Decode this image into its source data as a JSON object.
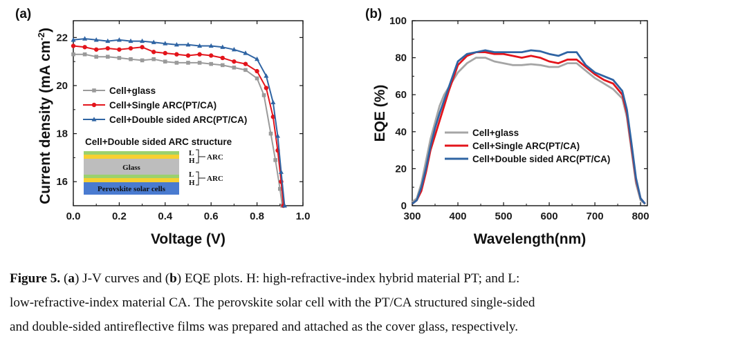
{
  "chart_data": [
    {
      "panel": "(a)",
      "type": "line",
      "title": "",
      "xlabel": "Voltage (V)",
      "ylabel": "Current density (mA cm",
      "ylabel_sup": "-2",
      "ylabel_close": ")",
      "xlim": [
        0.0,
        1.0
      ],
      "ylim": [
        15.0,
        22.7
      ],
      "xticks": [
        "0.0",
        "0.2",
        "0.4",
        "0.6",
        "0.8",
        "1.0"
      ],
      "yticks": [
        "16",
        "18",
        "20",
        "22"
      ],
      "legend_position": "center-left",
      "series": [
        {
          "name": "Cell+glass",
          "color": "#9a9a9a",
          "marker": "square",
          "x": [
            0,
            0.05,
            0.1,
            0.15,
            0.2,
            0.25,
            0.3,
            0.35,
            0.4,
            0.45,
            0.5,
            0.55,
            0.6,
            0.65,
            0.7,
            0.75,
            0.8,
            0.83,
            0.86,
            0.88,
            0.9,
            0.91
          ],
          "y": [
            21.3,
            21.3,
            21.2,
            21.2,
            21.15,
            21.1,
            21.05,
            21.1,
            21.0,
            20.95,
            20.95,
            20.95,
            20.9,
            20.85,
            20.75,
            20.65,
            20.3,
            19.6,
            18.0,
            16.9,
            15.7,
            15.0
          ]
        },
        {
          "name": "Cell+Single ARC(PT/CA)",
          "color": "#e3141b",
          "marker": "circle",
          "x": [
            0,
            0.05,
            0.1,
            0.15,
            0.2,
            0.25,
            0.3,
            0.35,
            0.4,
            0.45,
            0.5,
            0.55,
            0.6,
            0.65,
            0.7,
            0.75,
            0.8,
            0.84,
            0.87,
            0.89,
            0.905,
            0.915
          ],
          "y": [
            21.65,
            21.6,
            21.5,
            21.55,
            21.5,
            21.55,
            21.6,
            21.4,
            21.35,
            21.3,
            21.25,
            21.3,
            21.25,
            21.15,
            21.0,
            20.9,
            20.6,
            19.9,
            18.7,
            17.3,
            16.0,
            15.0
          ]
        },
        {
          "name": "Cell+Double sided ARC(PT/CA)",
          "color": "#2f64a3",
          "marker": "triangle",
          "x": [
            0,
            0.05,
            0.1,
            0.15,
            0.2,
            0.25,
            0.3,
            0.35,
            0.4,
            0.45,
            0.5,
            0.55,
            0.6,
            0.65,
            0.7,
            0.75,
            0.8,
            0.84,
            0.87,
            0.89,
            0.905,
            0.92
          ],
          "y": [
            21.9,
            21.95,
            21.9,
            21.85,
            21.9,
            21.85,
            21.85,
            21.8,
            21.75,
            21.7,
            21.7,
            21.65,
            21.65,
            21.6,
            21.5,
            21.35,
            21.1,
            20.4,
            19.3,
            17.9,
            16.4,
            15.0
          ]
        }
      ],
      "inset": {
        "title": "Cell+Double sided ARC structure",
        "layer_glass": "Glass",
        "layer_cell": "Perovskite solar cells",
        "label_L": "L",
        "label_H": "H",
        "label_arc": "ARC",
        "colors": {
          "L": "#9bd16d",
          "H": "#f7d031",
          "glass": "#bdbdbd",
          "cell": "#4a7bd0"
        }
      }
    },
    {
      "panel": "(b)",
      "type": "line",
      "title": "",
      "xlabel": "Wavelength(nm)",
      "ylabel": "EQE (%)",
      "xlim": [
        300,
        815
      ],
      "ylim": [
        0,
        100
      ],
      "xticks": [
        "300",
        "400",
        "500",
        "600",
        "700",
        "800"
      ],
      "yticks": [
        "0",
        "20",
        "40",
        "60",
        "80",
        "100"
      ],
      "legend_position": "lower-center",
      "series": [
        {
          "name": "Cell+glass",
          "color": "#a5a5a5",
          "x": [
            300,
            310,
            320,
            330,
            340,
            350,
            360,
            370,
            380,
            390,
            400,
            420,
            440,
            460,
            480,
            500,
            520,
            540,
            560,
            580,
            600,
            620,
            640,
            660,
            680,
            700,
            720,
            740,
            760,
            770,
            780,
            790,
            800,
            810
          ],
          "y": [
            2,
            4,
            12,
            24,
            36,
            45,
            54,
            60,
            64,
            68,
            72,
            77,
            80,
            80,
            78,
            77,
            76,
            76,
            76.5,
            76,
            75,
            75,
            77,
            77,
            73,
            69,
            66,
            63,
            58,
            48,
            30,
            12,
            3,
            1
          ]
        },
        {
          "name": "Cell+Single ARC(PT/CA)",
          "color": "#e3141b",
          "x": [
            300,
            310,
            320,
            330,
            340,
            350,
            360,
            370,
            380,
            390,
            400,
            420,
            440,
            460,
            480,
            500,
            520,
            540,
            560,
            580,
            600,
            620,
            640,
            660,
            680,
            700,
            720,
            740,
            760,
            770,
            780,
            790,
            800,
            810
          ],
          "y": [
            1,
            3,
            8,
            18,
            30,
            38,
            46,
            54,
            62,
            69,
            76,
            81,
            83,
            83,
            82,
            82,
            81,
            80,
            81,
            80,
            78,
            77,
            79,
            79,
            75,
            71,
            68,
            66,
            60,
            50,
            32,
            14,
            4,
            1
          ]
        },
        {
          "name": "Cell+Double sided ARC(PT/CA)",
          "color": "#2f64a3",
          "x": [
            300,
            310,
            320,
            330,
            340,
            350,
            360,
            370,
            380,
            390,
            400,
            420,
            440,
            460,
            480,
            500,
            520,
            540,
            560,
            580,
            600,
            620,
            640,
            660,
            680,
            700,
            720,
            740,
            760,
            770,
            780,
            790,
            800,
            810
          ],
          "y": [
            1,
            3,
            10,
            20,
            32,
            42,
            50,
            57,
            64,
            71,
            78,
            82,
            83,
            84,
            83,
            83,
            83,
            83,
            84,
            83.5,
            82,
            81,
            83,
            83,
            76,
            72,
            70,
            68,
            62,
            52,
            34,
            15,
            4,
            1
          ]
        }
      ]
    }
  ],
  "caption": {
    "label": "Figure 5.",
    "line1_a": " (",
    "line1_a_bold": "a",
    "line1_b": ") J-V curves and (",
    "line1_b_bold": "b",
    "line1_c": ") EQE plots.  H: high-refractive-index hybrid material PT; and L:",
    "line2": "low-refractive-index material CA. The perovskite solar cell with the PT/CA structured single-sided",
    "line3": "and double-sided antireflective films was prepared and attached as the cover glass, respectively."
  }
}
